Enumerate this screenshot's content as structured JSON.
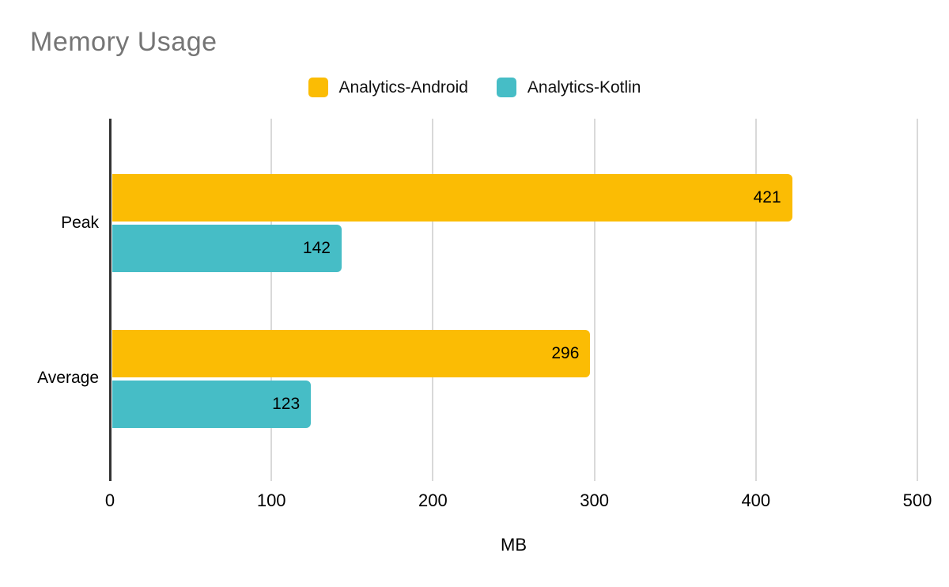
{
  "title": "Memory Usage",
  "colors": {
    "android_series": "#FBBC04",
    "kotlin_series": "#46BDC6",
    "title_text": "#757575",
    "axis_line": "#333333",
    "gridline": "#D9D9D9",
    "label_text": "#000000"
  },
  "legend": {
    "position": "top-center",
    "items": [
      {
        "label": "Analytics-Android",
        "color": "#FBBC04"
      },
      {
        "label": "Analytics-Kotlin",
        "color": "#46BDC6"
      }
    ]
  },
  "chart_data": {
    "type": "bar",
    "orientation": "horizontal",
    "title": "Memory Usage",
    "categories": [
      "Peak",
      "Average"
    ],
    "series": [
      {
        "name": "Analytics-Android",
        "color": "#FBBC04",
        "values": [
          421,
          296
        ]
      },
      {
        "name": "Analytics-Kotlin",
        "color": "#46BDC6",
        "values": [
          142,
          123
        ]
      }
    ],
    "xlabel": "MB",
    "ylabel": "",
    "xlim": [
      0,
      500
    ],
    "xticks": [
      0,
      100,
      200,
      300,
      400,
      500
    ],
    "grid": true,
    "value_labels": true,
    "legend_position": "top"
  }
}
